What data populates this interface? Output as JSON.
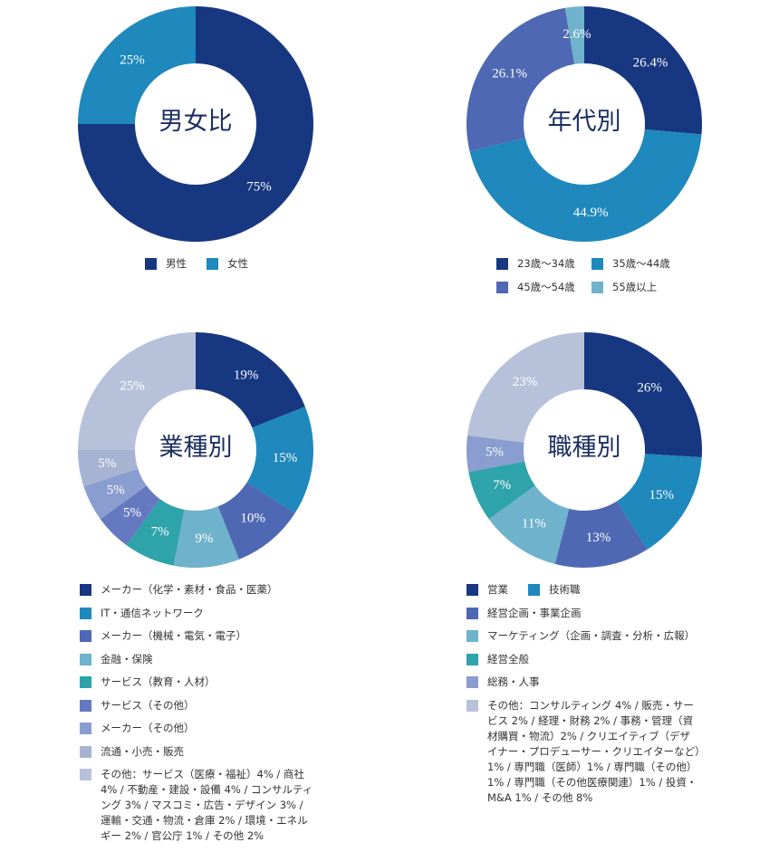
{
  "chart_data": [
    {
      "type": "pie",
      "title": "男女比",
      "categories": [
        "男性",
        "女性"
      ],
      "values": [
        75,
        25
      ],
      "value_labels": [
        "75%",
        "25%"
      ],
      "colors": [
        "#173781",
        "#1f88bd"
      ]
    },
    {
      "type": "pie",
      "title": "年代別",
      "categories": [
        "23歳～34歳",
        "35歳～44歳",
        "45歳～54歳",
        "55歳以上"
      ],
      "values": [
        26.4,
        44.9,
        26.1,
        2.6
      ],
      "value_labels": [
        "26.4%",
        "44.9%",
        "26.1%",
        "2.6%"
      ],
      "colors": [
        "#173781",
        "#1f88bd",
        "#4f68b4",
        "#6fb2cb"
      ]
    },
    {
      "type": "pie",
      "title": "業種別",
      "categories": [
        "メーカー（化学・素材・食品・医薬）",
        "IT・通信ネットワーク",
        "メーカー（機械・電気・電子）",
        "金融・保険",
        "サービス（教育・人材）",
        "サービス（その他）",
        "メーカー（その他）",
        "流通・小売・販売",
        "その他：サービス（医療・福祉）4% / 商社4% / 不動産・建設・設備 4% / コンサルティング 3% / マスコミ・広告・デザイン 3% / 運輸・交通・物流・倉庫 2% / 環境・エネルギー 2% / 官公庁 1% / その他 2%"
      ],
      "values": [
        19,
        15,
        10,
        9,
        7,
        5,
        5,
        5,
        25
      ],
      "value_labels": [
        "19%",
        "15%",
        "10%",
        "9%",
        "7%",
        "5%",
        "5%",
        "5%",
        "25%"
      ],
      "colors": [
        "#173781",
        "#1f88bd",
        "#4f68b4",
        "#6fb2cb",
        "#2ea3aa",
        "#6479bf",
        "#8a9dd0",
        "#a6b3d3",
        "#b7c2da"
      ]
    },
    {
      "type": "pie",
      "title": "職種別",
      "categories": [
        "営業",
        "技術職",
        "経営企画・事業企画",
        "マーケティング（企画・調査・分析・広報）",
        "経営全般",
        "総務・人事",
        "その他：コンサルティング 4% / 販売・サービス 2% / 経理・財務 2% / 事務・管理（資材購買・物流）2% / クリエイティブ（デザイナー・プロデューサー・クリエイターなど）1% / 専門職（医師）1% / 専門職（その他）1% / 専門職（その他医療関連）1% / 投資・M&A 1% / その他 8%"
      ],
      "values": [
        26,
        15,
        13,
        11,
        7,
        5,
        23
      ],
      "value_labels": [
        "26%",
        "15%",
        "13%",
        "11%",
        "7%",
        "5%",
        "23%"
      ],
      "colors": [
        "#173781",
        "#1f88bd",
        "#4f68b4",
        "#6fb2cb",
        "#2ea3aa",
        "#8a9dd0",
        "#b7c2da"
      ]
    }
  ]
}
